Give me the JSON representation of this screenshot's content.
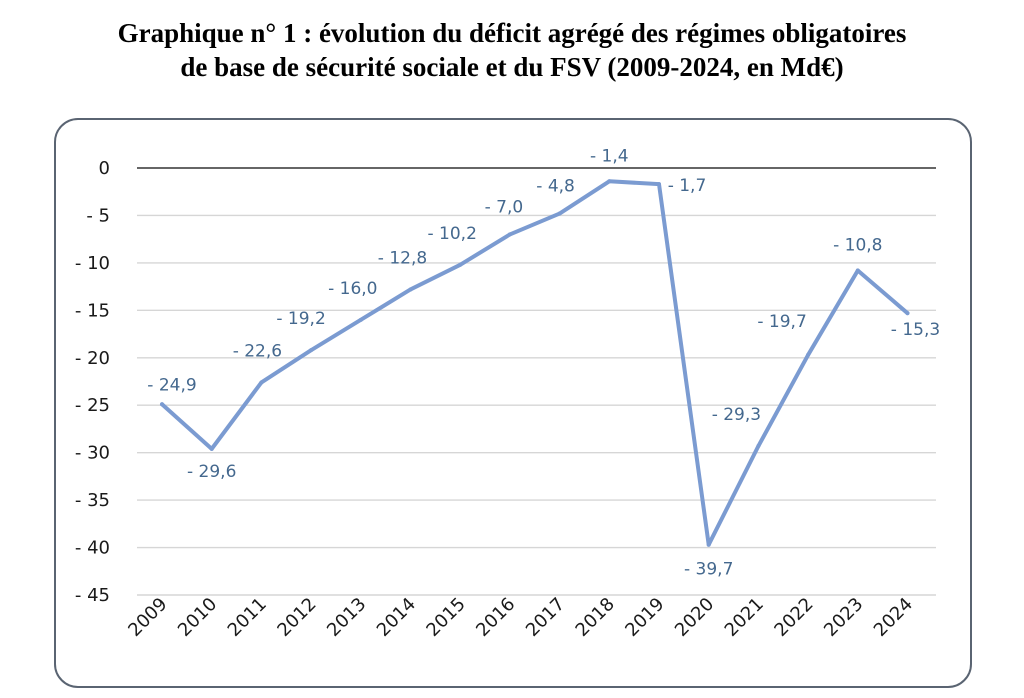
{
  "title_line1": "Graphique n° 1 : évolution du déficit agrégé des régimes obligatoires",
  "title_line2": "de base de sécurité sociale et du FSV (2009-2024, en Md€)",
  "colors": {
    "line": "#7b9bd1",
    "grid": "#d6d6d6",
    "zero_line": "#333333",
    "labels": "#44688e"
  },
  "chart_data": {
    "type": "line",
    "title": "Graphique n° 1 : évolution du déficit agrégé des régimes obligatoires de base de sécurité sociale et du FSV (2009-2024, en Md€)",
    "categories": [
      "2009",
      "2010",
      "2011",
      "2012",
      "2013",
      "2014",
      "2015",
      "2016",
      "2017",
      "2018",
      "2019",
      "2020",
      "2021",
      "2022",
      "2023",
      "2024"
    ],
    "values": [
      -24.9,
      -29.6,
      -22.6,
      -19.2,
      -16.0,
      -12.8,
      -10.2,
      -7.0,
      -4.8,
      -1.4,
      -1.7,
      -39.7,
      -29.3,
      -19.7,
      -10.8,
      -15.3
    ],
    "data_labels": [
      "- 24,9",
      "- 29,6",
      "- 22,6",
      "- 19,2",
      "- 16,0",
      "- 12,8",
      "- 10,2",
      "- 7,0",
      "- 4,8",
      "- 1,4",
      "- 1,7",
      "- 39,7",
      "- 29,3",
      "- 19,7",
      "- 10,8",
      "- 15,3"
    ],
    "yticks": [
      0,
      -5,
      -10,
      -15,
      -20,
      -25,
      -30,
      -35,
      -40,
      -45
    ],
    "ytick_labels": [
      "0",
      "- 5",
      "- 10",
      "- 15",
      "- 20",
      "- 25",
      "- 30",
      "- 35",
      "- 40",
      "- 45"
    ],
    "ylim": [
      -45,
      0
    ],
    "grid": true,
    "legend": "none"
  }
}
